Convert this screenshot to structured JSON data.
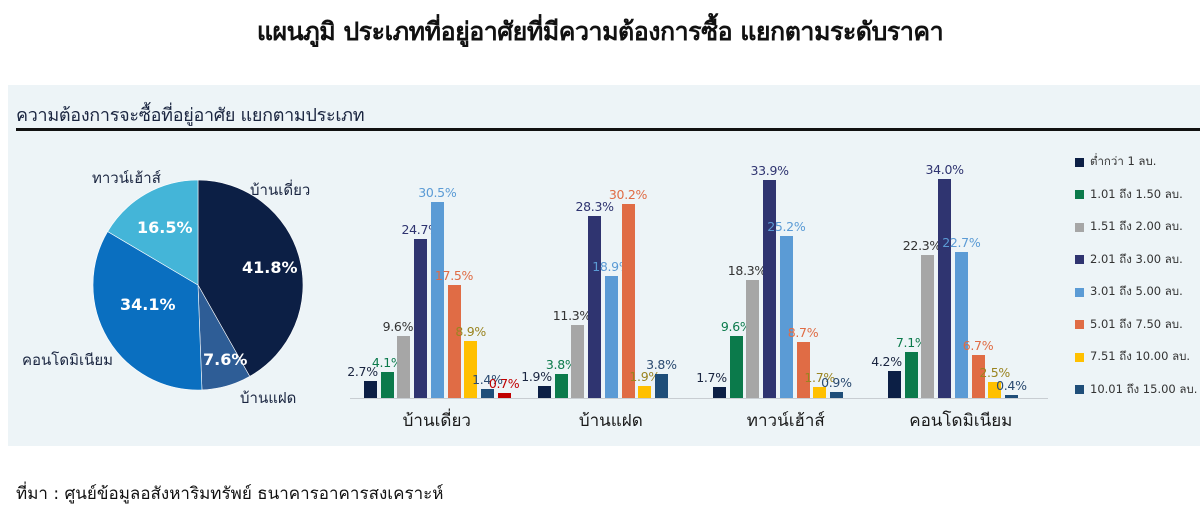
{
  "title": "แผนภูมิ ประเภทที่อยู่อาศัยที่มีความต้องการซื้อ แยกตามระดับราคา",
  "panel": {
    "subtitle": "ความต้องการจะซื้อที่อยู่อาศัย แยกตามประเภท"
  },
  "source": "ที่มา : ศูนย์ข้อมูลอสังหาริมทรัพย์ ธนาคารอาคารสงเคราะห์",
  "colors": {
    "pie": [
      "#0c1f45",
      "#2e5d96",
      "#0a6fc0",
      "#44b5d8"
    ],
    "bins": [
      "#0c1f45",
      "#0b7a4b",
      "#a6a6a6",
      "#2f3470",
      "#5b9bd5",
      "#e06c45",
      "#ffc000",
      "#1f4e79",
      "#c00000"
    ]
  },
  "pie": {
    "labels": [
      "บ้านเดี่ยว",
      "บ้านแฝด",
      "คอนโดมิเนียม",
      "ทาวน์เฮ้าส์"
    ],
    "values_text": [
      "41.8%",
      "7.6%",
      "34.1%",
      "16.5%"
    ]
  },
  "bars": {
    "categories": [
      "บ้านเดี่ยว",
      "บ้านแฝด",
      "ทาวน์เฮ้าส์",
      "คอนโดมิเนียม"
    ],
    "legend": [
      "ต่ำกว่า 1 ลบ.",
      "1.01 ถึง 1.50 ลบ.",
      "1.51 ถึง 2.00 ลบ.",
      "2.01 ถึง 3.00 ลบ.",
      "3.01 ถึง 5.00 ลบ.",
      "5.01 ถึง 7.50 ลบ.",
      "7.51 ถึง 10.00 ลบ.",
      "10.01 ถึง 15.00 ลบ."
    ]
  },
  "chart_data": [
    {
      "type": "pie",
      "title": "ความต้องการจะซื้อที่อยู่อาศัย แยกตามประเภท",
      "categories": [
        "บ้านเดี่ยว",
        "บ้านแฝด",
        "คอนโดมิเนียม",
        "ทาวน์เฮ้าส์"
      ],
      "values": [
        41.8,
        7.6,
        34.1,
        16.5
      ],
      "unit": "%"
    },
    {
      "type": "bar",
      "title": "แผนภูมิ ประเภทที่อยู่อาศัยที่มีความต้องการซื้อ แยกตามระดับราคา",
      "categories": [
        "บ้านเดี่ยว",
        "บ้านแฝด",
        "ทาวน์เฮ้าส์",
        "คอนโดมิเนียม"
      ],
      "legend_position": "right",
      "grid": false,
      "ylim": [
        0,
        35
      ],
      "series": [
        {
          "name": "ต่ำกว่า 1 ลบ.",
          "values": [
            2.7,
            1.9,
            1.7,
            4.2
          ]
        },
        {
          "name": "1.01 ถึง 1.50 ลบ.",
          "values": [
            4.1,
            3.8,
            9.6,
            7.1
          ]
        },
        {
          "name": "1.51 ถึง 2.00 ลบ.",
          "values": [
            9.6,
            11.3,
            18.3,
            22.3
          ]
        },
        {
          "name": "2.01 ถึง 3.00 ลบ.",
          "values": [
            24.7,
            28.3,
            33.9,
            34.0
          ]
        },
        {
          "name": "3.01 ถึง 5.00 ลบ.",
          "values": [
            30.5,
            18.9,
            25.2,
            22.7
          ]
        },
        {
          "name": "5.01 ถึง 7.50 ลบ.",
          "values": [
            17.5,
            30.2,
            8.7,
            6.7
          ]
        },
        {
          "name": "7.51 ถึง 10.00 ลบ.",
          "values": [
            8.9,
            1.9,
            1.7,
            2.5
          ]
        },
        {
          "name": "10.01 ถึง 15.00 ลบ.",
          "values": [
            1.4,
            3.8,
            0.9,
            0.4
          ]
        },
        {
          "name": "(unlabeled red bar)",
          "values": [
            0.7,
            null,
            null,
            null
          ]
        }
      ]
    }
  ]
}
